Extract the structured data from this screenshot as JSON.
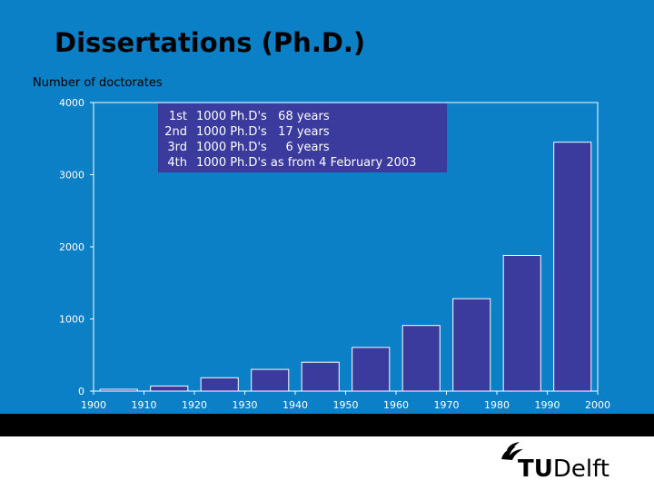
{
  "title": "Dissertations (Ph.D.)",
  "chart_data": {
    "type": "bar",
    "ylabel": "Number of doctorates",
    "xlabel": "",
    "ylim": [
      0,
      4000
    ],
    "yticks": [
      0,
      1000,
      2000,
      3000,
      4000
    ],
    "xlim": [
      1900,
      2000
    ],
    "xticks": [
      1900,
      1910,
      1920,
      1930,
      1940,
      1950,
      1960,
      1970,
      1980,
      1990,
      2000
    ],
    "categories": [
      "1900",
      "1910",
      "1920",
      "1930",
      "1940",
      "1950",
      "1960",
      "1970",
      "1980",
      "1990"
    ],
    "values": [
      25,
      70,
      185,
      300,
      400,
      605,
      910,
      1280,
      1880,
      3450
    ],
    "bar_color": "#3a3b9c",
    "grid": false,
    "annotation": {
      "rows": [
        {
          "rank": "1st",
          "text": "1000 Ph.D's   68 years"
        },
        {
          "rank": "2nd",
          "text": "1000 Ph.D's   17 years"
        },
        {
          "rank": "3rd",
          "text": "1000 Ph.D's     6 years"
        },
        {
          "rank": "4th",
          "text": "1000 Ph.D's as from 4 February 2003"
        }
      ]
    }
  },
  "logo": {
    "prefix": "TU",
    "suffix": "Delft"
  },
  "colors": {
    "background": "#0b80c6",
    "plot_fill": "#0b80c6",
    "axis": "#ffffff",
    "annotation_bg": "#3a3b9c"
  }
}
